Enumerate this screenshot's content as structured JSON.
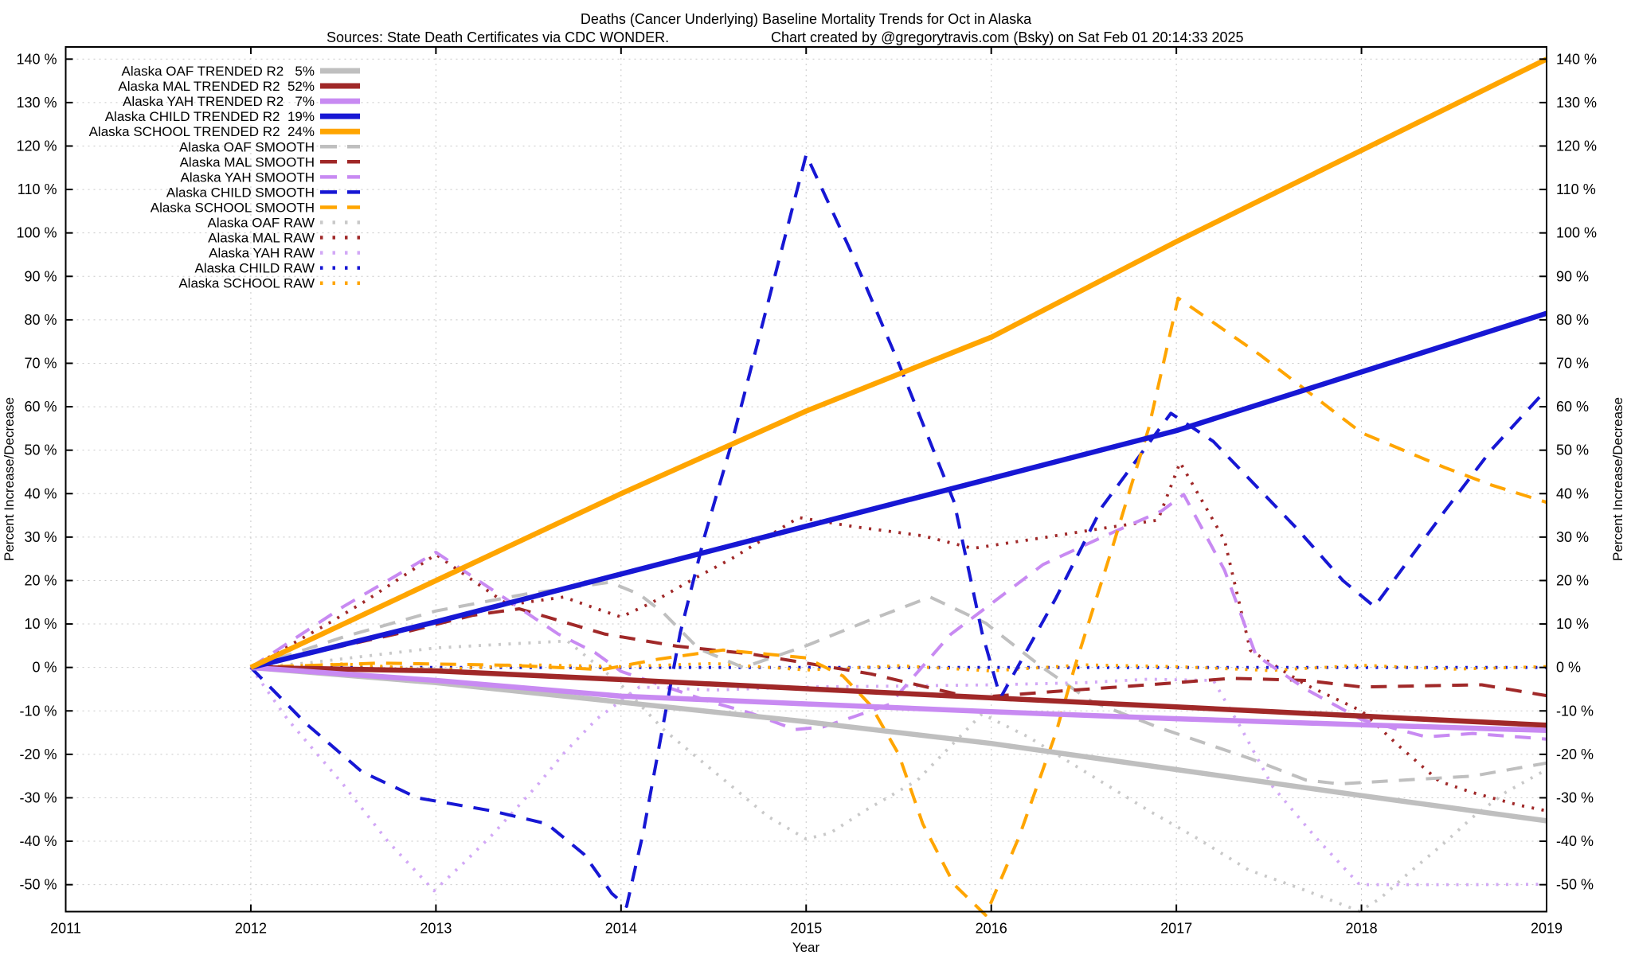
{
  "header": {
    "title_line1": "Deaths (Cancer Underlying)  Baseline Mortality Trends for Oct in Alaska",
    "title_line2_left": "Sources: State Death Certificates via CDC WONDER.",
    "title_line2_right": "Chart created by @gregorytravis.com (Bsky) on Sat Feb 01 20:14:33 2025"
  },
  "chart_data": {
    "type": "line",
    "title": "Deaths (Cancer Underlying)  Baseline Mortality Trends for Oct in Alaska",
    "xlabel": "Year",
    "ylabel_left": "Percent Increase/Decrease",
    "ylabel_right": "Percent Increase/Decrease",
    "xlim": [
      2011,
      2019
    ],
    "ylim": [
      -56.2,
      142.8
    ],
    "grid": true,
    "legend_position": "top-left",
    "x_ticks": [
      2011,
      2012,
      2013,
      2014,
      2015,
      2016,
      2017,
      2018,
      2019
    ],
    "y_ticks": [
      140,
      130,
      120,
      110,
      100,
      90,
      80,
      70,
      60,
      50,
      40,
      30,
      20,
      10,
      0,
      -10,
      -20,
      -30,
      -40,
      -50
    ],
    "y_tick_suffix": " %",
    "series": [
      {
        "label": "Alaska OAF TRENDED R2   5%",
        "name": "alaska-oaf-trended",
        "group": "TRENDED",
        "r2": "5%",
        "color": "#bfbfbf",
        "points": [
          [
            2012,
            0
          ],
          [
            2013,
            -3.5
          ],
          [
            2014,
            -8
          ],
          [
            2015,
            -12.5
          ],
          [
            2016,
            -17.5
          ],
          [
            2017,
            -23.5
          ],
          [
            2018,
            -29.5
          ],
          [
            2019,
            -35.3
          ]
        ]
      },
      {
        "label": "Alaska MAL TRENDED R2  52%",
        "name": "alaska-mal-trended",
        "group": "TRENDED",
        "r2": "52%",
        "color": "#a02828",
        "points": [
          [
            2012,
            0
          ],
          [
            2013,
            -0.8
          ],
          [
            2014,
            -2.8
          ],
          [
            2015,
            -4.9
          ],
          [
            2016,
            -7
          ],
          [
            2017,
            -9.1
          ],
          [
            2018,
            -11.2
          ],
          [
            2019,
            -13.3
          ]
        ]
      },
      {
        "label": "Alaska YAH TRENDED R2   7%",
        "name": "alaska-yah-trended",
        "group": "TRENDED",
        "r2": "7%",
        "color": "#c88af2",
        "points": [
          [
            2012,
            0
          ],
          [
            2013,
            -3
          ],
          [
            2014,
            -6.6
          ],
          [
            2015,
            -8.4
          ],
          [
            2016,
            -10.2
          ],
          [
            2017,
            -11.8
          ],
          [
            2018,
            -13.2
          ],
          [
            2019,
            -14.5
          ]
        ]
      },
      {
        "label": "Alaska CHILD TRENDED R2  19%",
        "name": "alaska-child-trended",
        "group": "TRENDED",
        "r2": "19%",
        "color": "#1717d4",
        "points": [
          [
            2012,
            0
          ],
          [
            2013,
            10.5
          ],
          [
            2014,
            21.5
          ],
          [
            2015,
            32.5
          ],
          [
            2016,
            43.5
          ],
          [
            2017,
            54.5
          ],
          [
            2018,
            68
          ],
          [
            2019,
            81.5
          ]
        ]
      },
      {
        "label": "Alaska SCHOOL TRENDED R2  24%",
        "name": "alaska-school-trended",
        "group": "TRENDED",
        "r2": "24%",
        "color": "#ffa500",
        "points": [
          [
            2012,
            0
          ],
          [
            2013,
            20
          ],
          [
            2014,
            40
          ],
          [
            2015,
            59
          ],
          [
            2016,
            76
          ],
          [
            2017,
            98
          ],
          [
            2018,
            119
          ],
          [
            2019,
            140
          ]
        ]
      },
      {
        "label": "Alaska OAF SMOOTH",
        "name": "alaska-oaf-smooth",
        "group": "SMOOTH",
        "color": "#bfbfbf",
        "points": [
          [
            2012,
            0
          ],
          [
            2012.5,
            7
          ],
          [
            2013,
            13
          ],
          [
            2013.5,
            17
          ],
          [
            2013.94,
            19.6
          ],
          [
            2014.1,
            16.8
          ],
          [
            2014.23,
            12.5
          ],
          [
            2014.42,
            4.3
          ],
          [
            2014.66,
            0
          ],
          [
            2015,
            5
          ],
          [
            2015.35,
            11
          ],
          [
            2015.67,
            16.2
          ],
          [
            2015.97,
            10.2
          ],
          [
            2016.27,
            0.2
          ],
          [
            2016.54,
            -7.8
          ],
          [
            2016.91,
            -13.9
          ],
          [
            2017.4,
            -21
          ],
          [
            2017.7,
            -25.9
          ],
          [
            2017.88,
            -26.8
          ],
          [
            2018.2,
            -26
          ],
          [
            2018.6,
            -25
          ],
          [
            2019,
            -22
          ]
        ]
      },
      {
        "label": "Alaska MAL SMOOTH",
        "name": "alaska-mal-smooth",
        "group": "SMOOTH",
        "color": "#a02828",
        "points": [
          [
            2012,
            0
          ],
          [
            2012.5,
            5
          ],
          [
            2012.85,
            8.3
          ],
          [
            2013.2,
            12
          ],
          [
            2013.45,
            13.5
          ],
          [
            2013.91,
            7.7
          ],
          [
            2014.3,
            4.9
          ],
          [
            2014.7,
            3.1
          ],
          [
            2015,
            1
          ],
          [
            2015.35,
            -1.5
          ],
          [
            2015.6,
            -4
          ],
          [
            2015.9,
            -7
          ],
          [
            2016.35,
            -5.5
          ],
          [
            2016.85,
            -4
          ],
          [
            2017.3,
            -2.5
          ],
          [
            2017.7,
            -3
          ],
          [
            2018,
            -4.5
          ],
          [
            2018.65,
            -4
          ],
          [
            2019,
            -6.5
          ]
        ]
      },
      {
        "label": "Alaska YAH SMOOTH",
        "name": "alaska-yah-smooth",
        "group": "SMOOTH",
        "color": "#c88af2",
        "points": [
          [
            2012,
            0
          ],
          [
            2012.5,
            14
          ],
          [
            2013,
            26.5
          ],
          [
            2013.3,
            18
          ],
          [
            2013.66,
            7.7
          ],
          [
            2013.86,
            3.4
          ],
          [
            2014,
            -0.9
          ],
          [
            2014.46,
            -7.6
          ],
          [
            2014.7,
            -10.5
          ],
          [
            2014.94,
            -14.3
          ],
          [
            2015.09,
            -13.7
          ],
          [
            2015.26,
            -11.3
          ],
          [
            2015.45,
            -8.5
          ],
          [
            2015.78,
            7.6
          ],
          [
            2016.28,
            23.7
          ],
          [
            2016.6,
            30
          ],
          [
            2016.92,
            36
          ],
          [
            2017.04,
            39.8
          ],
          [
            2017.26,
            22.4
          ],
          [
            2017.43,
            2.8
          ],
          [
            2017.7,
            -5
          ],
          [
            2018,
            -12
          ],
          [
            2018.35,
            -16
          ],
          [
            2018.6,
            -15.2
          ],
          [
            2019,
            -16.5
          ]
        ]
      },
      {
        "label": "Alaska CHILD SMOOTH",
        "name": "alaska-child-smooth",
        "group": "SMOOTH",
        "color": "#1717d4",
        "points": [
          [
            2012,
            0
          ],
          [
            2012.3,
            -13
          ],
          [
            2012.6,
            -24
          ],
          [
            2012.9,
            -30
          ],
          [
            2013.3,
            -33
          ],
          [
            2013.6,
            -36
          ],
          [
            2013.8,
            -43
          ],
          [
            2013.95,
            -52
          ],
          [
            2014.03,
            -55
          ],
          [
            2014.12,
            -38
          ],
          [
            2014.22,
            -15
          ],
          [
            2014.32,
            8
          ],
          [
            2014.45,
            30
          ],
          [
            2014.6,
            52
          ],
          [
            2014.77,
            80
          ],
          [
            2015,
            118
          ],
          [
            2015.25,
            95
          ],
          [
            2015.5,
            70
          ],
          [
            2015.8,
            38
          ],
          [
            2015.95,
            8
          ],
          [
            2016.05,
            -7
          ],
          [
            2016.35,
            16
          ],
          [
            2016.6,
            37
          ],
          [
            2016.97,
            58.5
          ],
          [
            2017.2,
            52
          ],
          [
            2017.65,
            32
          ],
          [
            2017.9,
            20
          ],
          [
            2018.07,
            14
          ],
          [
            2018.45,
            36
          ],
          [
            2018.7,
            50
          ],
          [
            2019,
            64
          ]
        ]
      },
      {
        "label": "Alaska SCHOOL SMOOTH",
        "name": "alaska-school-smooth",
        "group": "SMOOTH",
        "color": "#ffa500",
        "points": [
          [
            2012,
            0
          ],
          [
            2012.7,
            1
          ],
          [
            2013.4,
            0.5
          ],
          [
            2013.9,
            -0.5
          ],
          [
            2014.2,
            1.9
          ],
          [
            2014.55,
            4
          ],
          [
            2015,
            2.2
          ],
          [
            2015.2,
            -2
          ],
          [
            2015.35,
            -8.8
          ],
          [
            2015.5,
            -20
          ],
          [
            2015.63,
            -36
          ],
          [
            2015.8,
            -50
          ],
          [
            2015.97,
            -57
          ],
          [
            2016.15,
            -39
          ],
          [
            2016.35,
            -15
          ],
          [
            2016.45,
            0
          ],
          [
            2016.65,
            27
          ],
          [
            2016.85,
            55
          ],
          [
            2017.01,
            85
          ],
          [
            2017.45,
            72
          ],
          [
            2018,
            54
          ],
          [
            2018.45,
            46
          ],
          [
            2018.7,
            42
          ],
          [
            2019,
            38
          ]
        ]
      },
      {
        "label": "Alaska OAF RAW",
        "name": "alaska-oaf-raw",
        "group": "RAW",
        "color": "#c9c9c9",
        "points": [
          [
            2012,
            0
          ],
          [
            2012.3,
            1
          ],
          [
            2012.6,
            2.5
          ],
          [
            2013,
            4.5
          ],
          [
            2013.3,
            5.2
          ],
          [
            2013.71,
            6.1
          ],
          [
            2014,
            -4
          ],
          [
            2014.23,
            -14.3
          ],
          [
            2014.41,
            -20.7
          ],
          [
            2014.6,
            -27.4
          ],
          [
            2014.79,
            -34.2
          ],
          [
            2015,
            -39.5
          ],
          [
            2015.13,
            -38.1
          ],
          [
            2015.32,
            -32.9
          ],
          [
            2015.6,
            -26
          ],
          [
            2015.95,
            -10.7
          ],
          [
            2016.2,
            -16
          ],
          [
            2016.53,
            -24.6
          ],
          [
            2016.86,
            -33.2
          ],
          [
            2017.1,
            -39
          ],
          [
            2017.39,
            -46.6
          ],
          [
            2017.69,
            -51.2
          ],
          [
            2017.99,
            -56.1
          ],
          [
            2018.1,
            -53.2
          ],
          [
            2018.25,
            -47.5
          ],
          [
            2018.45,
            -40.3
          ],
          [
            2018.6,
            -34.5
          ],
          [
            2018.78,
            -28.7
          ],
          [
            2019,
            -23.5
          ]
        ]
      },
      {
        "label": "Alaska MAL RAW",
        "name": "alaska-mal-raw",
        "group": "RAW",
        "color": "#a02828",
        "points": [
          [
            2012,
            0
          ],
          [
            2012.43,
            10.4
          ],
          [
            2012.62,
            15.3
          ],
          [
            2013,
            26
          ],
          [
            2013.2,
            20
          ],
          [
            2013.39,
            14.4
          ],
          [
            2013.69,
            16.2
          ],
          [
            2013.87,
            13.5
          ],
          [
            2014,
            11.6
          ],
          [
            2014.17,
            15
          ],
          [
            2014.41,
            20.8
          ],
          [
            2014.6,
            25.1
          ],
          [
            2014.96,
            34.5
          ],
          [
            2015.26,
            32.4
          ],
          [
            2015.63,
            30.3
          ],
          [
            2015.9,
            27.4
          ],
          [
            2016.3,
            30
          ],
          [
            2016.6,
            32
          ],
          [
            2016.9,
            33.9
          ],
          [
            2017.02,
            47.2
          ],
          [
            2017.26,
            29.3
          ],
          [
            2017.4,
            3.9
          ],
          [
            2017.7,
            -4
          ],
          [
            2018,
            -10
          ],
          [
            2018.2,
            -18
          ],
          [
            2018.42,
            -26.2
          ],
          [
            2018.6,
            -28.8
          ],
          [
            2018.85,
            -31.7
          ],
          [
            2019,
            -33
          ]
        ]
      },
      {
        "label": "Alaska YAH RAW",
        "name": "alaska-yah-raw",
        "group": "RAW",
        "color": "#d2a8f6",
        "points": [
          [
            2012,
            0
          ],
          [
            2012.2,
            -12
          ],
          [
            2012.5,
            -27
          ],
          [
            2012.74,
            -40
          ],
          [
            2012.99,
            -51.4
          ],
          [
            2013.15,
            -45
          ],
          [
            2013.3,
            -38.7
          ],
          [
            2013.55,
            -27
          ],
          [
            2013.69,
            -19.8
          ],
          [
            2013.87,
            -11.8
          ],
          [
            2014.1,
            -4.5
          ],
          [
            2014.5,
            -5.2
          ],
          [
            2015,
            -4.5
          ],
          [
            2015.49,
            -4.3
          ],
          [
            2016,
            -4
          ],
          [
            2016.5,
            -3.5
          ],
          [
            2016.85,
            -2.7
          ],
          [
            2017.2,
            -3
          ],
          [
            2017.35,
            -14
          ],
          [
            2017.52,
            -27.4
          ],
          [
            2017.75,
            -39
          ],
          [
            2017.99,
            -50
          ],
          [
            2018.3,
            -50
          ],
          [
            2018.6,
            -50
          ],
          [
            2019,
            -49.9
          ]
        ]
      },
      {
        "label": "Alaska CHILD RAW",
        "name": "alaska-child-raw",
        "group": "RAW",
        "color": "#1717d4",
        "points": [
          [
            2012,
            0
          ],
          [
            2019,
            0
          ]
        ]
      },
      {
        "label": "Alaska SCHOOL RAW",
        "name": "alaska-school-raw",
        "group": "RAW",
        "color": "#ffa500",
        "points": [
          [
            2012,
            0
          ],
          [
            2012.5,
            0.8
          ],
          [
            2013,
            -0.5
          ],
          [
            2013.5,
            0.6
          ],
          [
            2014,
            0.2
          ],
          [
            2014.5,
            0.9
          ],
          [
            2015,
            -0.6
          ],
          [
            2015.5,
            0.4
          ],
          [
            2016,
            -0.8
          ],
          [
            2016.5,
            0.6
          ],
          [
            2017,
            0.2
          ],
          [
            2017.5,
            -0.7
          ],
          [
            2018,
            0.5
          ],
          [
            2018.5,
            -0.4
          ],
          [
            2019,
            0.2
          ]
        ]
      }
    ]
  }
}
